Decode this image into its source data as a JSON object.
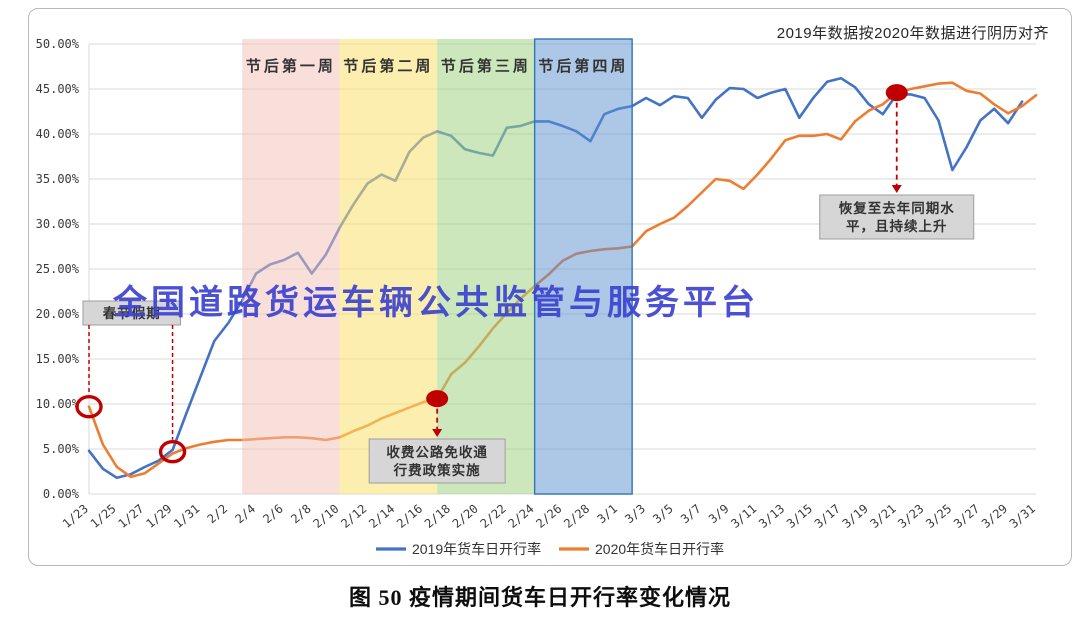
{
  "watermark": "全国道路货运车辆公共监管与服务平台",
  "caption": "图 50 疫情期间货车日开行率变化情况",
  "chart_data": {
    "type": "line",
    "note": "2019年数据按2020年数据进行阴历对齐",
    "x": [
      "1/23",
      "1/24",
      "1/25",
      "1/26",
      "1/27",
      "1/28",
      "1/29",
      "1/30",
      "1/31",
      "2/1",
      "2/2",
      "2/3",
      "2/4",
      "2/5",
      "2/6",
      "2/7",
      "2/8",
      "2/9",
      "2/10",
      "2/11",
      "2/12",
      "2/13",
      "2/14",
      "2/15",
      "2/16",
      "2/17",
      "2/18",
      "2/19",
      "2/20",
      "2/21",
      "2/22",
      "2/23",
      "2/24",
      "2/25",
      "2/26",
      "2/27",
      "2/28",
      "2/29",
      "3/1",
      "3/2",
      "3/3",
      "3/4",
      "3/5",
      "3/6",
      "3/7",
      "3/8",
      "3/9",
      "3/10",
      "3/11",
      "3/12",
      "3/13",
      "3/14",
      "3/15",
      "3/16",
      "3/17",
      "3/18",
      "3/19",
      "3/20",
      "3/21",
      "3/22",
      "3/23",
      "3/24",
      "3/25",
      "3/26",
      "3/27",
      "3/28",
      "3/29",
      "3/30",
      "3/31"
    ],
    "x_tick_step": 2,
    "ylim": [
      0,
      50
    ],
    "y_tick_labels": [
      "0.00%",
      "5.00%",
      "10.00%",
      "15.00%",
      "20.00%",
      "25.00%",
      "30.00%",
      "35.00%",
      "40.00%",
      "45.00%",
      "50.00%"
    ],
    "grid": true,
    "legend_position": "bottom",
    "annotation_color": "#C00000",
    "series": [
      {
        "name": "2019年货车日开行率",
        "color": "#4472C4",
        "values": [
          4.8,
          2.8,
          1.8,
          2.2,
          3.0,
          3.7,
          4.9,
          9.0,
          13.0,
          17.0,
          19.0,
          21.5,
          24.5,
          25.5,
          26.0,
          26.8,
          24.5,
          26.6,
          29.6,
          32.2,
          34.5,
          35.5,
          34.8,
          38.0,
          39.6,
          40.3,
          39.8,
          38.3,
          37.9,
          37.6,
          40.7,
          40.9,
          41.4,
          41.4,
          40.9,
          40.3,
          39.2,
          42.2,
          42.8,
          43.1,
          44.0,
          43.2,
          44.2,
          44.0,
          41.8,
          43.8,
          45.1,
          45.0,
          44.0,
          44.6,
          45.0,
          41.8,
          44.0,
          45.8,
          46.2,
          45.2,
          43.3,
          42.2,
          44.4,
          44.4,
          44.0,
          41.5,
          36.0,
          38.5,
          41.5,
          42.8,
          41.2,
          43.6,
          null
        ]
      },
      {
        "name": "2020年货车日开行率",
        "color": "#ED7D31",
        "values": [
          9.7,
          5.5,
          3.0,
          1.9,
          2.3,
          3.4,
          4.5,
          5.1,
          5.5,
          5.8,
          6.0,
          6.0,
          6.1,
          6.2,
          6.3,
          6.3,
          6.2,
          6.0,
          6.3,
          7.0,
          7.6,
          8.4,
          9.0,
          9.6,
          10.2,
          10.6,
          13.3,
          14.6,
          16.4,
          18.4,
          20.1,
          21.7,
          23.1,
          24.4,
          25.9,
          26.7,
          27.0,
          27.2,
          27.3,
          27.5,
          29.2,
          30.0,
          30.7,
          32.0,
          33.5,
          35.0,
          34.8,
          33.9,
          35.5,
          37.3,
          39.3,
          39.8,
          39.8,
          40.0,
          39.4,
          41.4,
          42.6,
          43.3,
          44.6,
          45.0,
          45.3,
          45.6,
          45.7,
          44.8,
          44.5,
          43.3,
          42.3,
          43.1,
          44.3
        ]
      }
    ],
    "bands": [
      {
        "label": "节后第一周",
        "start": "2/3",
        "end": "2/10",
        "fill": "rgba(243,191,181,0.5)"
      },
      {
        "label": "节后第二周",
        "start": "2/10",
        "end": "2/17",
        "fill": "rgba(250,224,110,0.55)"
      },
      {
        "label": "节后第三周",
        "start": "2/17",
        "end": "2/24",
        "fill": "rgba(163,211,133,0.55)"
      },
      {
        "label": "节后第四周",
        "start": "2/24",
        "end": "3/2",
        "fill": "rgba(91,146,208,0.5)",
        "border": "#2E75B6"
      }
    ],
    "annotations": [
      {
        "id": "spring-festival",
        "label": "春节假期",
        "points": [
          {
            "x": "1/23",
            "y": 9.7
          },
          {
            "x": "1/29",
            "y": 4.7
          }
        ]
      },
      {
        "id": "toll-policy",
        "label": [
          "收费公路免收通",
          "行费政策实施"
        ],
        "point": {
          "x": "2/17",
          "y": 10.6
        }
      },
      {
        "id": "recovery",
        "label": [
          "恢复至去年同期水",
          "平，且持续上升"
        ],
        "point": {
          "x": "3/21",
          "y": 44.6
        }
      }
    ]
  }
}
